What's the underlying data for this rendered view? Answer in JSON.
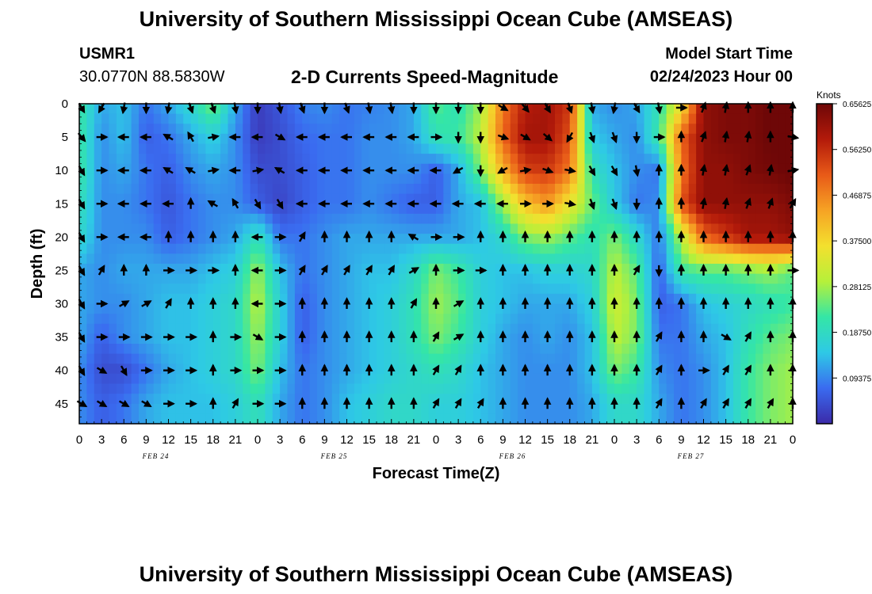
{
  "header": {
    "title": "University of Southern Mississippi Ocean Cube (AMSEAS)",
    "station": "USMR1",
    "coords": "30.0770N  88.5830W",
    "product": "2-D Currents Speed-Magnitude",
    "model_start_label": "Model Start Time",
    "model_start_value": "02/24/2023 Hour 00"
  },
  "footer": {
    "title": "University of Southern Mississippi Ocean Cube (AMSEAS)"
  },
  "colors": {
    "palette": [
      "#3b2aa8",
      "#3a6bf0",
      "#2ec9e6",
      "#34e6a6",
      "#b6f03a",
      "#f3e02e",
      "#f6a324",
      "#e85a18",
      "#b31a0a",
      "#6e0707"
    ]
  },
  "chart_data": {
    "type": "heatmap",
    "xlabel": "Forecast Time(Z)",
    "ylabel": "Depth (ft)",
    "xlim": [
      0,
      96
    ],
    "ylim": [
      48,
      0
    ],
    "x_ticks": [
      0,
      3,
      6,
      9,
      12,
      15,
      18,
      21,
      24,
      27,
      30,
      33,
      36,
      39,
      42,
      45,
      48,
      51,
      54,
      57,
      60,
      63,
      66,
      69,
      72,
      75,
      78,
      81,
      84,
      87,
      90,
      93,
      96
    ],
    "x_tick_labels": [
      "0",
      "3",
      "6",
      "9",
      "12",
      "15",
      "18",
      "21",
      "0",
      "3",
      "6",
      "9",
      "12",
      "15",
      "18",
      "21",
      "0",
      "3",
      "6",
      "9",
      "12",
      "15",
      "18",
      "21",
      "0",
      "3",
      "6",
      "9",
      "12",
      "15",
      "18",
      "21",
      "0"
    ],
    "y_ticks": [
      0,
      5,
      10,
      15,
      20,
      25,
      30,
      35,
      40,
      45
    ],
    "y_tick_labels": [
      "0",
      "5",
      "10",
      "15",
      "20",
      "25",
      "30",
      "35",
      "40",
      "45"
    ],
    "date_labels": [
      {
        "label": "FEB 24",
        "x": 12
      },
      {
        "label": "FEB 25",
        "x": 36
      },
      {
        "label": "FEB 26",
        "x": 60
      },
      {
        "label": "FEB 27",
        "x": 84
      }
    ],
    "colorbar": {
      "title": "Knots",
      "range": [
        0,
        0.65625
      ],
      "ticks": [
        0.09375,
        0.1875,
        0.28125,
        0.375,
        0.46875,
        0.5625,
        0.65625
      ],
      "tick_labels": [
        "0.09375",
        "0.18750",
        "0.28125",
        "0.37500",
        "0.46875",
        "0.56250",
        "0.65625"
      ]
    },
    "grid_depths": [
      0,
      5,
      10,
      15,
      20,
      25,
      30,
      35,
      40,
      45
    ],
    "grid_times": [
      0,
      3,
      6,
      9,
      12,
      15,
      18,
      21,
      24,
      27,
      30,
      33,
      36,
      39,
      42,
      45,
      48,
      51,
      54,
      57,
      60,
      63,
      66,
      69,
      72,
      75,
      78,
      81,
      84,
      87,
      90,
      93,
      96
    ],
    "speed": [
      [
        0.22,
        0.12,
        0.14,
        0.08,
        0.12,
        0.18,
        0.26,
        0.12,
        0.02,
        0.05,
        0.09,
        0.1,
        0.08,
        0.09,
        0.1,
        0.12,
        0.24,
        0.2,
        0.28,
        0.48,
        0.58,
        0.6,
        0.55,
        0.12,
        0.1,
        0.12,
        0.2,
        0.35,
        0.62,
        0.64,
        0.64,
        0.66,
        0.66
      ],
      [
        0.22,
        0.1,
        0.14,
        0.06,
        0.08,
        0.12,
        0.16,
        0.1,
        0.02,
        0.04,
        0.07,
        0.08,
        0.08,
        0.1,
        0.1,
        0.12,
        0.2,
        0.22,
        0.3,
        0.5,
        0.6,
        0.6,
        0.52,
        0.15,
        0.12,
        0.1,
        0.22,
        0.5,
        0.62,
        0.64,
        0.64,
        0.66,
        0.66
      ],
      [
        0.22,
        0.1,
        0.12,
        0.08,
        0.06,
        0.1,
        0.12,
        0.1,
        0.04,
        0.04,
        0.06,
        0.08,
        0.08,
        0.1,
        0.1,
        0.1,
        0.06,
        0.12,
        0.26,
        0.42,
        0.54,
        0.55,
        0.48,
        0.2,
        0.14,
        0.1,
        0.08,
        0.48,
        0.62,
        0.62,
        0.64,
        0.65,
        0.66
      ],
      [
        0.2,
        0.1,
        0.1,
        0.08,
        0.05,
        0.08,
        0.1,
        0.1,
        0.06,
        0.03,
        0.06,
        0.08,
        0.08,
        0.1,
        0.08,
        0.06,
        0.06,
        0.12,
        0.14,
        0.28,
        0.4,
        0.45,
        0.35,
        0.25,
        0.15,
        0.08,
        0.1,
        0.52,
        0.62,
        0.62,
        0.62,
        0.62,
        0.64
      ],
      [
        0.18,
        0.1,
        0.1,
        0.1,
        0.06,
        0.08,
        0.1,
        0.12,
        0.2,
        0.08,
        0.08,
        0.1,
        0.12,
        0.12,
        0.12,
        0.12,
        0.12,
        0.12,
        0.14,
        0.18,
        0.26,
        0.28,
        0.24,
        0.2,
        0.26,
        0.18,
        0.08,
        0.3,
        0.5,
        0.55,
        0.6,
        0.6,
        0.62
      ],
      [
        0.12,
        0.1,
        0.12,
        0.12,
        0.12,
        0.12,
        0.14,
        0.16,
        0.28,
        0.14,
        0.08,
        0.1,
        0.12,
        0.14,
        0.14,
        0.18,
        0.26,
        0.22,
        0.16,
        0.14,
        0.14,
        0.16,
        0.16,
        0.18,
        0.3,
        0.24,
        0.06,
        0.22,
        0.24,
        0.24,
        0.26,
        0.28,
        0.24
      ],
      [
        0.12,
        0.1,
        0.1,
        0.12,
        0.14,
        0.14,
        0.16,
        0.18,
        0.3,
        0.16,
        0.06,
        0.1,
        0.12,
        0.14,
        0.16,
        0.2,
        0.28,
        0.24,
        0.16,
        0.14,
        0.12,
        0.12,
        0.12,
        0.16,
        0.32,
        0.26,
        0.06,
        0.08,
        0.14,
        0.16,
        0.18,
        0.2,
        0.22
      ],
      [
        0.12,
        0.06,
        0.1,
        0.12,
        0.14,
        0.14,
        0.16,
        0.18,
        0.28,
        0.16,
        0.06,
        0.1,
        0.12,
        0.14,
        0.16,
        0.2,
        0.26,
        0.22,
        0.16,
        0.12,
        0.1,
        0.12,
        0.1,
        0.14,
        0.3,
        0.26,
        0.08,
        0.08,
        0.12,
        0.14,
        0.2,
        0.24,
        0.26
      ],
      [
        0.1,
        0.04,
        0.04,
        0.08,
        0.12,
        0.14,
        0.16,
        0.18,
        0.26,
        0.14,
        0.08,
        0.1,
        0.12,
        0.14,
        0.16,
        0.18,
        0.2,
        0.18,
        0.14,
        0.12,
        0.1,
        0.1,
        0.1,
        0.14,
        0.26,
        0.22,
        0.1,
        0.08,
        0.1,
        0.14,
        0.22,
        0.26,
        0.28
      ],
      [
        0.1,
        0.06,
        0.08,
        0.12,
        0.14,
        0.14,
        0.14,
        0.16,
        0.2,
        0.12,
        0.08,
        0.1,
        0.14,
        0.16,
        0.18,
        0.18,
        0.16,
        0.16,
        0.14,
        0.12,
        0.1,
        0.1,
        0.1,
        0.12,
        0.18,
        0.18,
        0.12,
        0.08,
        0.1,
        0.14,
        0.22,
        0.26,
        0.28
      ]
    ],
    "direction_deg": [
      [
        150,
        210,
        190,
        180,
        190,
        160,
        160,
        170,
        180,
        170,
        160,
        180,
        160,
        170,
        170,
        180,
        180,
        180,
        180,
        120,
        140,
        150,
        160,
        170,
        190,
        150,
        170,
        90,
        20,
        10,
        0,
        0,
        0
      ],
      [
        140,
        90,
        270,
        270,
        300,
        330,
        80,
        270,
        270,
        120,
        270,
        270,
        270,
        270,
        270,
        270,
        90,
        180,
        180,
        110,
        120,
        130,
        210,
        160,
        160,
        180,
        90,
        0,
        20,
        10,
        10,
        0,
        100
      ],
      [
        150,
        90,
        270,
        270,
        300,
        300,
        80,
        270,
        80,
        300,
        270,
        270,
        270,
        270,
        270,
        270,
        270,
        240,
        180,
        240,
        80,
        110,
        100,
        150,
        150,
        170,
        0,
        0,
        10,
        10,
        20,
        10,
        80
      ],
      [
        150,
        90,
        270,
        270,
        270,
        0,
        300,
        330,
        150,
        150,
        270,
        270,
        270,
        270,
        270,
        270,
        270,
        270,
        270,
        270,
        90,
        90,
        100,
        160,
        160,
        180,
        0,
        0,
        10,
        10,
        20,
        20,
        30
      ],
      [
        150,
        90,
        270,
        270,
        0,
        0,
        0,
        0,
        270,
        90,
        30,
        0,
        0,
        0,
        0,
        300,
        90,
        90,
        0,
        0,
        0,
        0,
        0,
        0,
        0,
        0,
        0,
        0,
        0,
        0,
        0,
        0,
        0
      ],
      [
        150,
        30,
        0,
        0,
        90,
        90,
        90,
        0,
        270,
        90,
        30,
        30,
        30,
        30,
        30,
        60,
        0,
        90,
        90,
        0,
        0,
        0,
        0,
        0,
        0,
        30,
        180,
        0,
        0,
        0,
        0,
        0,
        90
      ],
      [
        150,
        90,
        60,
        60,
        30,
        0,
        0,
        0,
        270,
        90,
        0,
        0,
        0,
        0,
        0,
        30,
        0,
        60,
        0,
        0,
        0,
        0,
        0,
        0,
        0,
        0,
        0,
        0,
        0,
        0,
        0,
        0,
        0
      ],
      [
        150,
        90,
        90,
        90,
        90,
        90,
        0,
        90,
        120,
        90,
        0,
        0,
        0,
        0,
        0,
        0,
        30,
        60,
        0,
        0,
        0,
        0,
        0,
        0,
        0,
        0,
        30,
        0,
        0,
        120,
        30,
        0,
        0
      ],
      [
        150,
        120,
        150,
        90,
        90,
        90,
        0,
        90,
        90,
        90,
        0,
        0,
        0,
        0,
        0,
        0,
        30,
        30,
        0,
        0,
        0,
        0,
        0,
        0,
        0,
        0,
        30,
        0,
        90,
        30,
        30,
        0,
        0
      ],
      [
        120,
        120,
        120,
        120,
        90,
        90,
        0,
        30,
        90,
        90,
        0,
        0,
        0,
        0,
        0,
        0,
        30,
        30,
        30,
        0,
        0,
        0,
        0,
        0,
        0,
        0,
        30,
        0,
        30,
        30,
        30,
        30,
        0
      ]
    ]
  }
}
